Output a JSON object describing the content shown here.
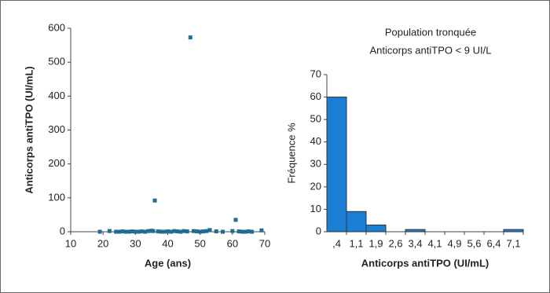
{
  "chart_data": [
    {
      "type": "scatter",
      "x_label": "Age (ans)",
      "y_label": "Anticorps antiTPO  (UI/mL)",
      "color": "#1f6d8f",
      "x": [
        19,
        22,
        24,
        25,
        26,
        27,
        28,
        29,
        30,
        31,
        32,
        33,
        34,
        35,
        35.5,
        36,
        37,
        38,
        39,
        40,
        41,
        42,
        43,
        44,
        45,
        46,
        47,
        48,
        49,
        50,
        51,
        52,
        53,
        55,
        57,
        60,
        61,
        62,
        63,
        64,
        65,
        66,
        69
      ],
      "values": [
        0,
        2,
        0,
        0,
        1,
        0,
        0,
        1,
        0,
        0,
        1,
        0,
        2,
        3,
        2,
        92,
        1,
        0,
        0,
        1,
        0,
        2,
        1,
        0,
        2,
        1,
        573,
        2,
        1,
        0,
        1,
        2,
        5,
        1,
        0,
        2,
        35,
        1,
        0,
        0,
        1,
        0,
        4
      ],
      "xlim": [
        10,
        70
      ],
      "xticks": [
        10,
        20,
        30,
        40,
        50,
        60,
        70
      ],
      "ylim": [
        0,
        600
      ],
      "yticks": [
        0,
        100,
        200,
        300,
        400,
        500,
        600
      ]
    },
    {
      "type": "bar",
      "title": "Population tronquée",
      "subtitle": "Anticorps antiTPO < 9 UI/L",
      "x_label": "Anticorps antiTPO (UI/mL)",
      "y_label": "Fréquence %",
      "color": "#1a7fd4",
      "categories": [
        ",4",
        "1,1",
        "1,9",
        "2,6",
        "3,4",
        "4,1",
        "4,9",
        "5,6",
        "6,4",
        "7,1"
      ],
      "values": [
        60,
        9,
        3,
        0,
        1,
        0,
        0,
        0,
        0,
        1
      ],
      "ylim": [
        0,
        70
      ],
      "yticks": [
        0,
        10,
        20,
        30,
        40,
        50,
        60,
        70
      ]
    }
  ]
}
